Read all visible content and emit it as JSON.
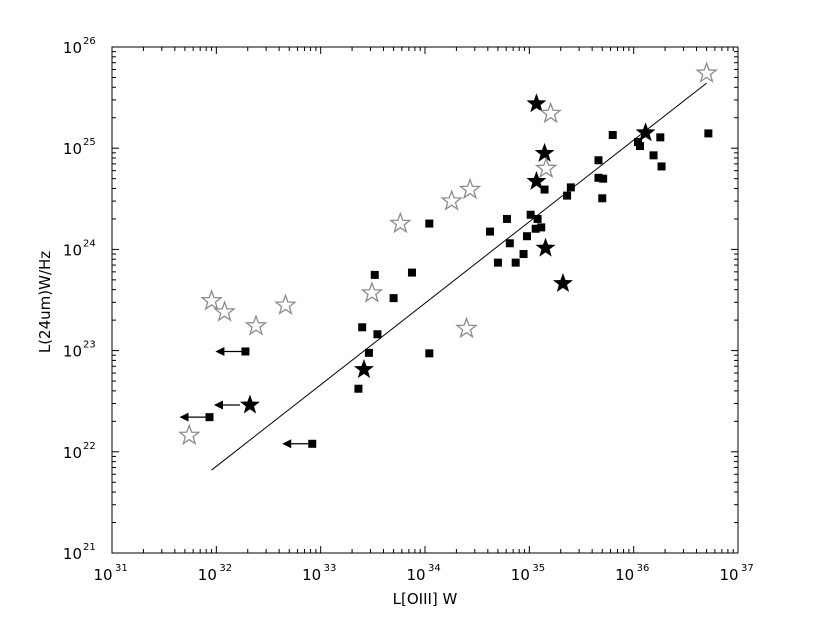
{
  "chart_data": {
    "type": "scatter",
    "title": "",
    "xlabel": "L[OIII] W",
    "ylabel": "L(24um)W/Hz",
    "x_scale": "log",
    "y_scale": "log",
    "xlim": [
      1e+31,
      1e+37
    ],
    "ylim": [
      1e+21,
      1e+26
    ],
    "x_ticks": [
      {
        "base": "10",
        "exp": "31",
        "value": 1e+31
      },
      {
        "base": "10",
        "exp": "32",
        "value": 1e+32
      },
      {
        "base": "10",
        "exp": "33",
        "value": 1e+33
      },
      {
        "base": "10",
        "exp": "34",
        "value": 1e+34
      },
      {
        "base": "10",
        "exp": "35",
        "value": 1e+35
      },
      {
        "base": "10",
        "exp": "36",
        "value": 1e+36
      },
      {
        "base": "10",
        "exp": "37",
        "value": 1e+37
      }
    ],
    "y_ticks": [
      {
        "base": "10",
        "exp": "21",
        "value": 1e+21
      },
      {
        "base": "10",
        "exp": "22",
        "value": 1e+22
      },
      {
        "base": "10",
        "exp": "23",
        "value": 1e+23
      },
      {
        "base": "10",
        "exp": "24",
        "value": 1e+24
      },
      {
        "base": "10",
        "exp": "25",
        "value": 1e+25
      },
      {
        "base": "10",
        "exp": "26",
        "value": 1e+26
      }
    ],
    "grid": false,
    "legend": "none",
    "colors": {
      "filled": "#000000",
      "open_star": "#8c8c8c"
    },
    "series": [
      {
        "marker": "filled-square",
        "points": [
          [
            2.3e+33,
            4.2e+22
          ],
          [
            2.5e+33,
            1.7e+23
          ],
          [
            2.9e+33,
            9.5e+22
          ],
          [
            3.3e+33,
            5.6e+23
          ],
          [
            3.5e+33,
            1.45e+23
          ],
          [
            5e+33,
            3.3e+23
          ],
          [
            7.5e+33,
            5.9e+23
          ],
          [
            1.1e+34,
            9.4e+22
          ],
          [
            1.1e+34,
            1.8e+24
          ],
          [
            4.2e+34,
            1.5e+24
          ],
          [
            5e+34,
            7.4e+23
          ],
          [
            6.1e+34,
            2e+24
          ],
          [
            6.5e+34,
            1.15e+24
          ],
          [
            7.4e+34,
            7.4e+23
          ],
          [
            8.8e+34,
            9e+23
          ],
          [
            9.5e+34,
            1.35e+24
          ],
          [
            1.03e+35,
            2.2e+24
          ],
          [
            1.15e+35,
            1.6e+24
          ],
          [
            1.2e+35,
            2e+24
          ],
          [
            1.3e+35,
            1.65e+24
          ],
          [
            1.4e+35,
            3.9e+24
          ],
          [
            2.3e+35,
            3.4e+24
          ],
          [
            2.5e+35,
            4.1e+24
          ],
          [
            4.6e+35,
            7.6e+24
          ],
          [
            4.6e+35,
            5.1e+24
          ],
          [
            5e+35,
            3.2e+24
          ],
          [
            5.1e+35,
            5e+24
          ],
          [
            6.3e+35,
            1.35e+25
          ],
          [
            1.1e+36,
            1.15e+25
          ],
          [
            1.15e+36,
            1.05e+25
          ],
          [
            1.55e+36,
            8.5e+24
          ],
          [
            1.8e+36,
            1.28e+25
          ],
          [
            1.85e+36,
            6.6e+24
          ],
          [
            5.2e+36,
            1.4e+25
          ]
        ]
      },
      {
        "marker": "filled-square-upper-limit",
        "points": [
          [
            1.9e+32,
            9.8e+22
          ],
          [
            8.6e+31,
            2.2e+22
          ],
          [
            8.3e+32,
            1.2e+22
          ]
        ]
      },
      {
        "marker": "filled-star",
        "points": [
          [
            2.6e+33,
            6.5e+22
          ],
          [
            1.17e+35,
            2.75e+25
          ],
          [
            1.17e+35,
            4.7e+24
          ],
          [
            1.4e+35,
            8.9e+24
          ],
          [
            1.43e+35,
            1.03e+24
          ],
          [
            2.1e+35,
            4.6e+23
          ],
          [
            1.3e+36,
            1.42e+25
          ]
        ]
      },
      {
        "marker": "filled-star-upper-limit",
        "points": [
          [
            2.1e+32,
            2.9e+22
          ]
        ]
      },
      {
        "marker": "open-star",
        "points": [
          [
            5.5e+31,
            1.45e+22
          ],
          [
            9e+31,
            3.1e+23
          ],
          [
            1.2e+32,
            2.4e+23
          ],
          [
            2.4e+32,
            1.75e+23
          ],
          [
            4.6e+32,
            2.8e+23
          ],
          [
            3.1e+33,
            3.7e+23
          ],
          [
            5.8e+33,
            1.8e+24
          ],
          [
            1.8e+34,
            3e+24
          ],
          [
            2.5e+34,
            1.65e+23
          ],
          [
            2.7e+34,
            3.9e+24
          ],
          [
            1.45e+35,
            6.3e+24
          ],
          [
            1.6e+35,
            2.2e+25
          ],
          [
            5e+36,
            5.5e+25
          ]
        ]
      }
    ],
    "fit_line": {
      "x": [
        9e+31,
        5e+36
      ],
      "y": [
        6.6e+21,
        4.4e+25
      ]
    }
  }
}
